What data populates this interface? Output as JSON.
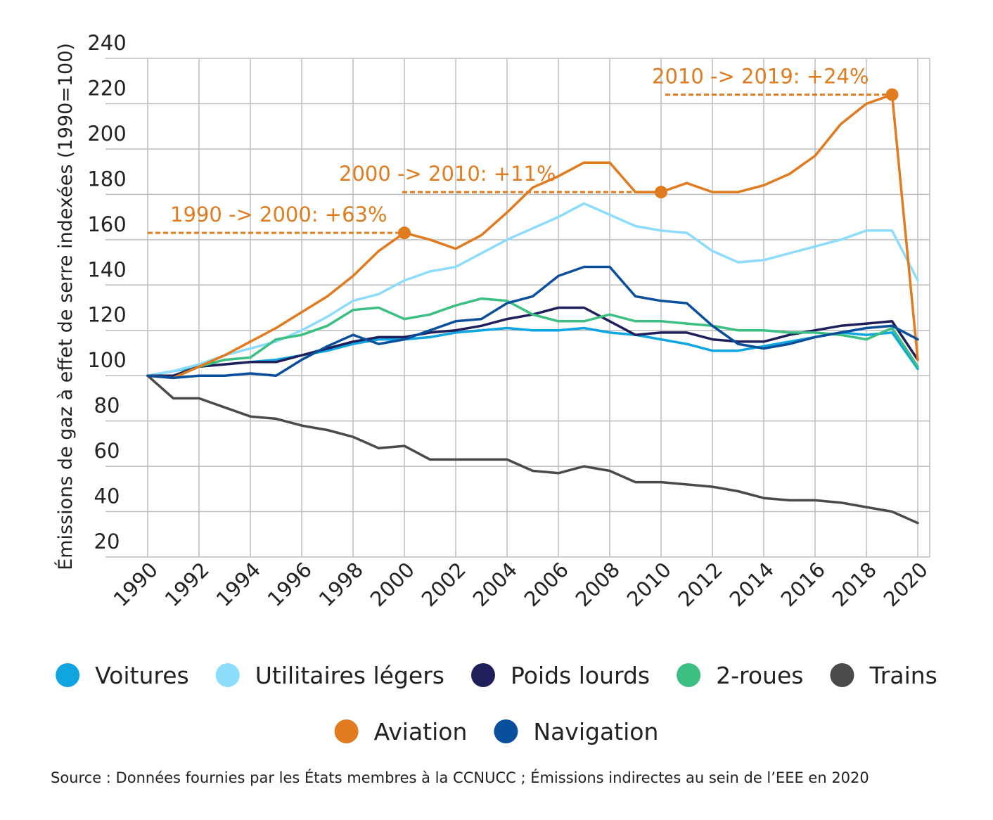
{
  "chart_data": {
    "type": "line",
    "title": "",
    "ylabel": "Émissions de gaz à effet de serre indexées (1990=100)",
    "xlabel": "",
    "ylim": [
      20,
      240
    ],
    "yticks": [
      20,
      40,
      60,
      80,
      100,
      120,
      140,
      160,
      180,
      200,
      220,
      240
    ],
    "xlim": [
      1990,
      2020
    ],
    "xticks": [
      1990,
      1992,
      1994,
      1996,
      1998,
      2000,
      2002,
      2004,
      2006,
      2008,
      2010,
      2012,
      2014,
      2016,
      2018,
      2020
    ],
    "grid": true,
    "legend_position": "bottom",
    "x": [
      1990,
      1991,
      1992,
      1993,
      1994,
      1995,
      1996,
      1997,
      1998,
      1999,
      2000,
      2001,
      2002,
      2003,
      2004,
      2005,
      2006,
      2007,
      2008,
      2009,
      2010,
      2011,
      2012,
      2013,
      2014,
      2015,
      2016,
      2017,
      2018,
      2019,
      2020
    ],
    "series": [
      {
        "name": "Voitures",
        "color": "#0ea5e0",
        "values": [
          100,
          102,
          104,
          105,
          106,
          107,
          109,
          111,
          114,
          116,
          116,
          117,
          119,
          120,
          121,
          120,
          120,
          121,
          119,
          118,
          116,
          114,
          111,
          111,
          113,
          115,
          117,
          119,
          118,
          119,
          103
        ]
      },
      {
        "name": "Utilitaires légers",
        "color": "#8edcfb",
        "values": [
          100,
          102,
          105,
          109,
          112,
          115,
          120,
          126,
          133,
          136,
          142,
          146,
          148,
          154,
          160,
          165,
          170,
          176,
          171,
          166,
          164,
          163,
          155,
          150,
          151,
          154,
          157,
          160,
          164,
          164,
          142
        ]
      },
      {
        "name": "Poids lourds",
        "color": "#1f1f5c",
        "values": [
          100,
          100,
          104,
          105,
          106,
          106,
          109,
          112,
          115,
          117,
          117,
          119,
          120,
          122,
          125,
          127,
          130,
          130,
          124,
          118,
          119,
          119,
          116,
          115,
          115,
          118,
          120,
          122,
          123,
          124,
          107
        ]
      },
      {
        "name": "2-roues",
        "color": "#3cbf82",
        "values": [
          100,
          99,
          104,
          107,
          108,
          116,
          118,
          122,
          129,
          130,
          125,
          127,
          131,
          134,
          133,
          127,
          124,
          124,
          127,
          124,
          124,
          123,
          122,
          120,
          120,
          119,
          119,
          118,
          116,
          121,
          104
        ]
      },
      {
        "name": "Trains",
        "color": "#4a4a4a",
        "values": [
          100,
          90,
          90,
          86,
          82,
          81,
          78,
          76,
          73,
          68,
          69,
          63,
          63,
          63,
          63,
          58,
          57,
          60,
          58,
          53,
          53,
          52,
          51,
          49,
          46,
          45,
          45,
          44,
          42,
          40,
          35
        ]
      },
      {
        "name": "Aviation",
        "color": "#e07b1f",
        "values": [
          100,
          99,
          104,
          109,
          115,
          121,
          128,
          135,
          144,
          155,
          163,
          160,
          156,
          162,
          172,
          183,
          188,
          194,
          194,
          181,
          181,
          185,
          181,
          181,
          184,
          189,
          197,
          211,
          220,
          224,
          107
        ]
      },
      {
        "name": "Navigation",
        "color": "#0a4f9c",
        "values": [
          100,
          99,
          100,
          100,
          101,
          100,
          107,
          113,
          118,
          114,
          116,
          120,
          124,
          125,
          132,
          135,
          144,
          148,
          148,
          135,
          133,
          132,
          122,
          114,
          112,
          114,
          117,
          119,
          121,
          122,
          116
        ]
      }
    ],
    "annotations": [
      {
        "text": "1990 -> 2000: +63%",
        "from_x": 1990,
        "to_x": 2000,
        "y": 163,
        "color": "#e07b1f"
      },
      {
        "text": "2000 -> 2010: +11%",
        "from_x": 2000,
        "to_x": 2010,
        "y": 181,
        "color": "#e07b1f"
      },
      {
        "text": "2010 -> 2019: +24%",
        "from_x": 2010,
        "to_x": 2019,
        "y": 224,
        "color": "#e07b1f"
      }
    ]
  },
  "source": "Source : Données fournies par les États membres à la CCNUCC ; Émissions indirectes au sein de l’EEE en 2020"
}
